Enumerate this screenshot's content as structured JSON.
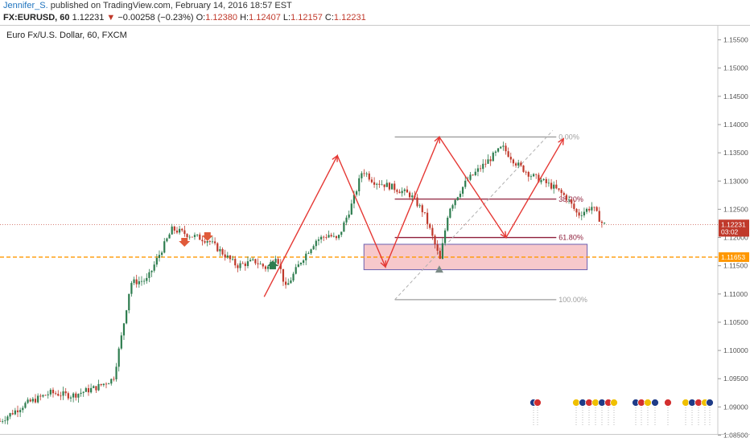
{
  "header": {
    "author": "Jennifer_S.",
    "published": "published on TradingView.com, February 14, 2016 18:57 EST",
    "symbol": "FX:EURUSD, 60",
    "last": "1.12231",
    "change_arrow": "▼",
    "change": "−0.00258 (−0.23%)",
    "o_label": "O:",
    "o": "1.12380",
    "h_label": "H:",
    "h": "1.12407",
    "l_label": "L:",
    "l": "1.12157",
    "c_label": "C:",
    "c": "1.12231"
  },
  "chart_title": "Euro Fx/U.S. Dollar, 60, FXCM",
  "colors": {
    "bull": "#2e7d4f",
    "bear": "#c0392b",
    "arrow_red": "#e53935",
    "fib_line": "#9e9e9e",
    "fib_mid": "#8e1f3b",
    "zone_fill": "#f4b6b9",
    "zone_border": "#6a5fb0",
    "support": "#ff9800",
    "price_label_bg": "#c0392b"
  },
  "chart_data": {
    "type": "candlestick",
    "ylim": [
      1.0855,
      1.1575
    ],
    "yticks": [
      "1.15500",
      "1.15000",
      "1.14500",
      "1.14000",
      "1.13500",
      "1.13000",
      "1.12500",
      "1.12000",
      "1.11500",
      "1.11000",
      "1.10500",
      "1.10000",
      "1.09500",
      "1.09000",
      "1.08500"
    ],
    "last_price_label": "1.12231",
    "countdown_label": "03:02",
    "support_label": "1.11653",
    "support_level": 1.11653,
    "fib_levels": [
      {
        "label": "0.00%",
        "value": 1.1378
      },
      {
        "label": "38.20%",
        "value": 1.1268
      },
      {
        "label": "61.80%",
        "value": 1.12
      },
      {
        "label": "100.00%",
        "value": 1.109
      }
    ],
    "demand_zone": {
      "top": 1.1188,
      "bottom": 1.1143,
      "x_start": 0.507,
      "x_end": 0.818
    },
    "price_path": [
      [
        0.0,
        1.0875
      ],
      [
        0.035,
        1.0905
      ],
      [
        0.07,
        1.0925
      ],
      [
        0.1,
        1.092
      ],
      [
        0.135,
        1.0935
      ],
      [
        0.158,
        1.095
      ],
      [
        0.17,
        1.103
      ],
      [
        0.182,
        1.112
      ],
      [
        0.205,
        1.1125
      ],
      [
        0.22,
        1.1165
      ],
      [
        0.24,
        1.1215
      ],
      [
        0.262,
        1.1205
      ],
      [
        0.29,
        1.1195
      ],
      [
        0.308,
        1.1175
      ],
      [
        0.33,
        1.115
      ],
      [
        0.355,
        1.1158
      ],
      [
        0.372,
        1.1145
      ],
      [
        0.385,
        1.117
      ],
      [
        0.398,
        1.111
      ],
      [
        0.42,
        1.116
      ],
      [
        0.44,
        1.1195
      ],
      [
        0.458,
        1.1205
      ],
      [
        0.47,
        1.1195
      ],
      [
        0.492,
        1.1265
      ],
      [
        0.505,
        1.132
      ],
      [
        0.52,
        1.13
      ],
      [
        0.545,
        1.129
      ],
      [
        0.572,
        1.1275
      ],
      [
        0.59,
        1.1245
      ],
      [
        0.6,
        1.121
      ],
      [
        0.613,
        1.116
      ],
      [
        0.625,
        1.125
      ],
      [
        0.65,
        1.13
      ],
      [
        0.675,
        1.133
      ],
      [
        0.7,
        1.136
      ],
      [
        0.72,
        1.133
      ],
      [
        0.74,
        1.131
      ],
      [
        0.77,
        1.129
      ],
      [
        0.79,
        1.127
      ],
      [
        0.805,
        1.124
      ],
      [
        0.825,
        1.1255
      ],
      [
        0.84,
        1.1223
      ]
    ],
    "annotations": {
      "red_down_arrows": [
        [
          0.257,
          1.1188
        ],
        [
          0.289,
          1.1198
        ]
      ],
      "green_up_arrow": [
        0.38,
        1.1155
      ],
      "grey_up_arrow": [
        0.612,
        1.1145
      ]
    }
  },
  "events_label": "economic-events-icons"
}
